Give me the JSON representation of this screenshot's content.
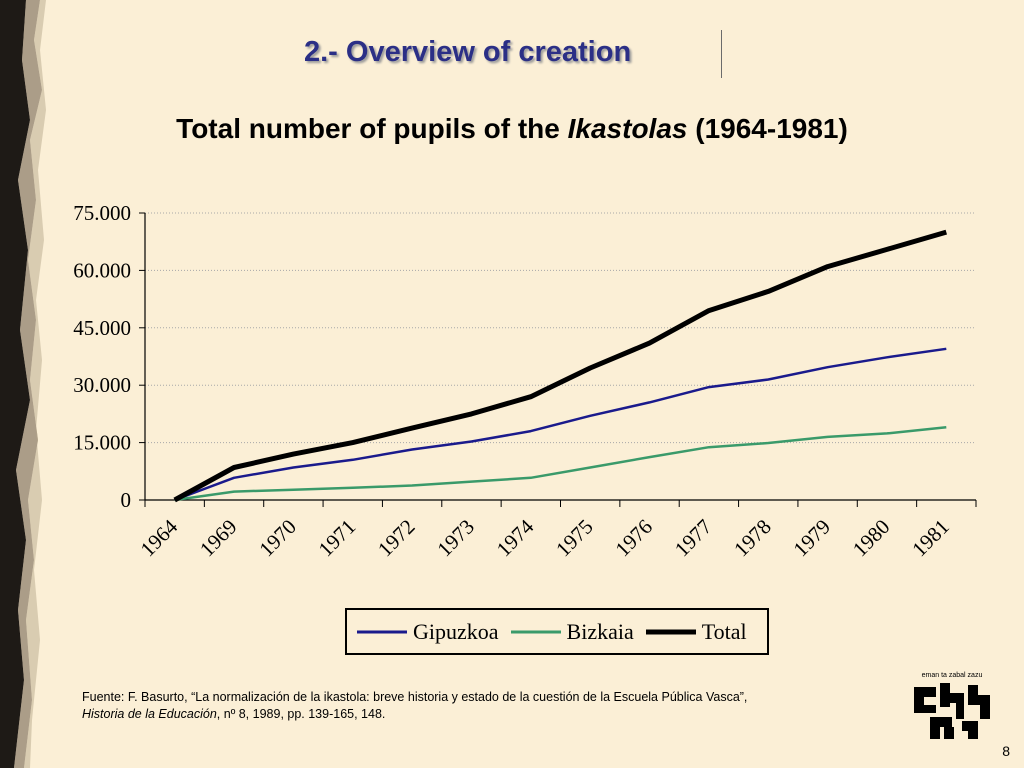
{
  "slide": {
    "section_title": "2.- Overview of creation",
    "chart_title_prefix": "Total number of pupils of the ",
    "chart_title_emph": "Ikastolas",
    "chart_title_suffix": " (1964-1981)",
    "page_number": "8",
    "colors": {
      "background": "#fbefd6",
      "section_title": "#2b2f86"
    }
  },
  "source": {
    "part1": "Fuente: F. Basurto, “La normalización de la ikastola: breve historia y estado de la cuestión de la Escuela Pública Vasca”,",
    "journal": "Historia de la Educación",
    "part2": ", nº 8, 1989, pp. 139-165, 148."
  },
  "logo": {
    "motto": "eman ta zabal zazu",
    "icon": "upv-ehu-logo"
  },
  "chart_data": {
    "type": "line",
    "title": "Total number of pupils of the Ikastolas (1964-1981)",
    "categories": [
      "1964",
      "1969",
      "1970",
      "1971",
      "1972",
      "1973",
      "1974",
      "1975",
      "1976",
      "1977",
      "1978",
      "1979",
      "1980",
      "1981"
    ],
    "y_ticks": [
      "0",
      "15.000",
      "30.000",
      "45.000",
      "60.000",
      "75.000"
    ],
    "ylim": [
      0,
      75000
    ],
    "grid": "horizontal",
    "legend_position": "bottom",
    "series": [
      {
        "name": "Gipuzkoa",
        "color": "#1a1a8c",
        "width": 2.5,
        "values": [
          0,
          5800,
          8500,
          10500,
          13200,
          15300,
          18000,
          22000,
          25500,
          29500,
          31500,
          34700,
          37300,
          39500
        ]
      },
      {
        "name": "Bizkaia",
        "color": "#3a9a6a",
        "width": 2.5,
        "values": [
          0,
          2200,
          2700,
          3200,
          3800,
          4800,
          5800,
          8500,
          11200,
          13800,
          14900,
          16500,
          17400,
          19000
        ]
      },
      {
        "name": "Total",
        "color": "#000000",
        "width": 5,
        "values": [
          0,
          8500,
          12000,
          15000,
          18800,
          22500,
          27000,
          34500,
          41000,
          49500,
          54500,
          61000,
          65500,
          70000
        ]
      }
    ]
  }
}
